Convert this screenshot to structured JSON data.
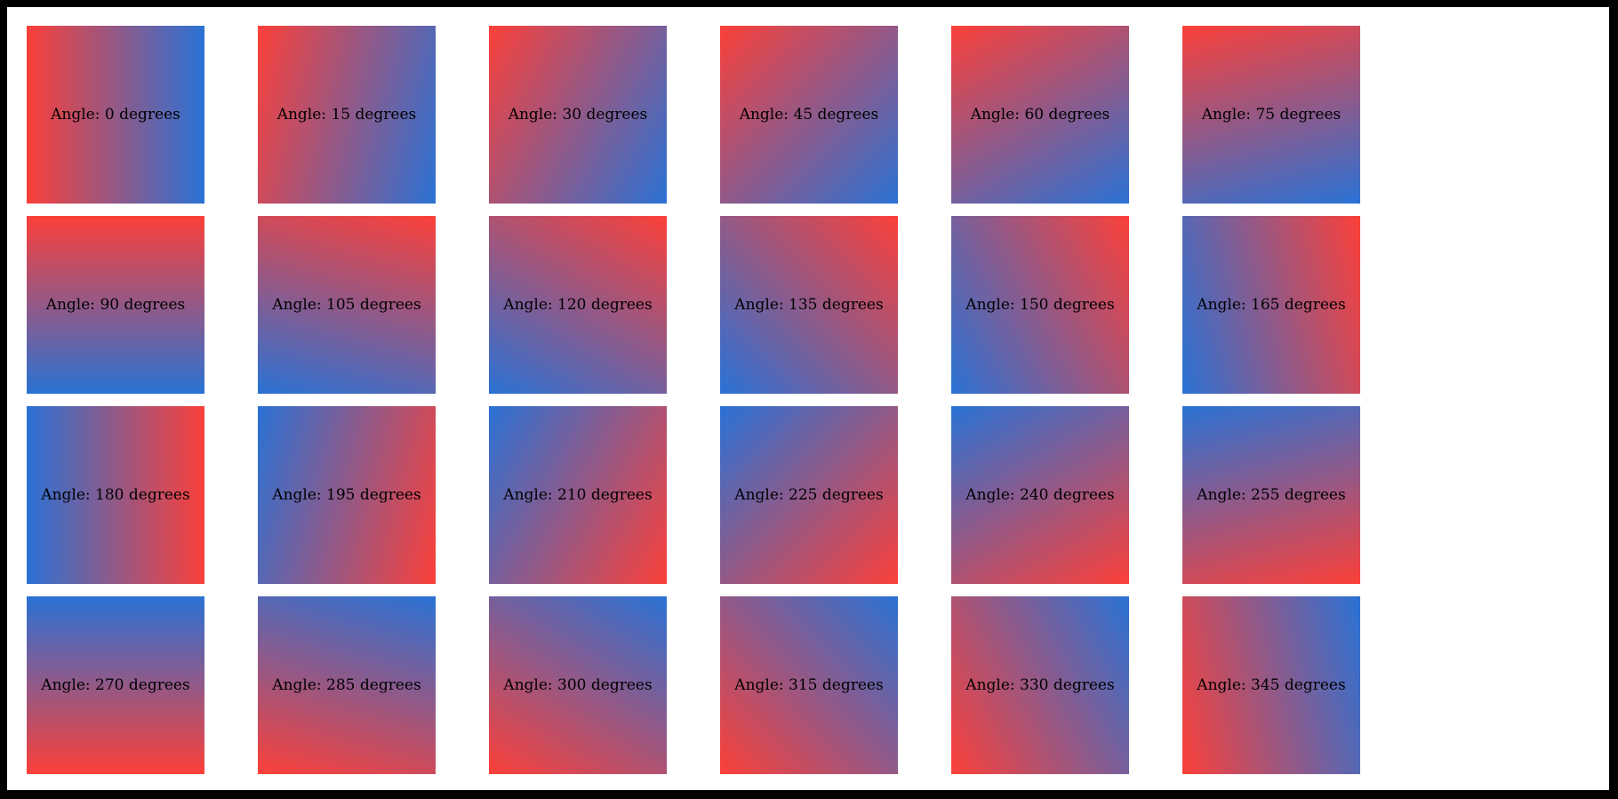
{
  "page": {
    "background_color": "#ffffff",
    "frame_color": "#000000"
  },
  "gradient": {
    "start_color": "#fb4039",
    "end_color": "#2a72d5",
    "label_text_color": "#000000"
  },
  "tiles": [
    {
      "label": "Angle: 0 degrees",
      "angle_degrees": 0
    },
    {
      "label": "Angle: 15 degrees",
      "angle_degrees": 15
    },
    {
      "label": "Angle: 30 degrees",
      "angle_degrees": 30
    },
    {
      "label": "Angle: 45 degrees",
      "angle_degrees": 45
    },
    {
      "label": "Angle: 60 degrees",
      "angle_degrees": 60
    },
    {
      "label": "Angle: 75 degrees",
      "angle_degrees": 75
    },
    {
      "label": "Angle: 90 degrees",
      "angle_degrees": 90
    },
    {
      "label": "Angle: 105 degrees",
      "angle_degrees": 105
    },
    {
      "label": "Angle: 120 degrees",
      "angle_degrees": 120
    },
    {
      "label": "Angle: 135 degrees",
      "angle_degrees": 135
    },
    {
      "label": "Angle: 150 degrees",
      "angle_degrees": 150
    },
    {
      "label": "Angle: 165 degrees",
      "angle_degrees": 165
    },
    {
      "label": "Angle: 180 degrees",
      "angle_degrees": 180
    },
    {
      "label": "Angle: 195 degrees",
      "angle_degrees": 195
    },
    {
      "label": "Angle: 210 degrees",
      "angle_degrees": 210
    },
    {
      "label": "Angle: 225 degrees",
      "angle_degrees": 225
    },
    {
      "label": "Angle: 240 degrees",
      "angle_degrees": 240
    },
    {
      "label": "Angle: 255 degrees",
      "angle_degrees": 255
    },
    {
      "label": "Angle: 270 degrees",
      "angle_degrees": 270
    },
    {
      "label": "Angle: 285 degrees",
      "angle_degrees": 285
    },
    {
      "label": "Angle: 300 degrees",
      "angle_degrees": 300
    },
    {
      "label": "Angle: 315 degrees",
      "angle_degrees": 315
    },
    {
      "label": "Angle: 330 degrees",
      "angle_degrees": 330
    },
    {
      "label": "Angle: 345 degrees",
      "angle_degrees": 345
    }
  ]
}
